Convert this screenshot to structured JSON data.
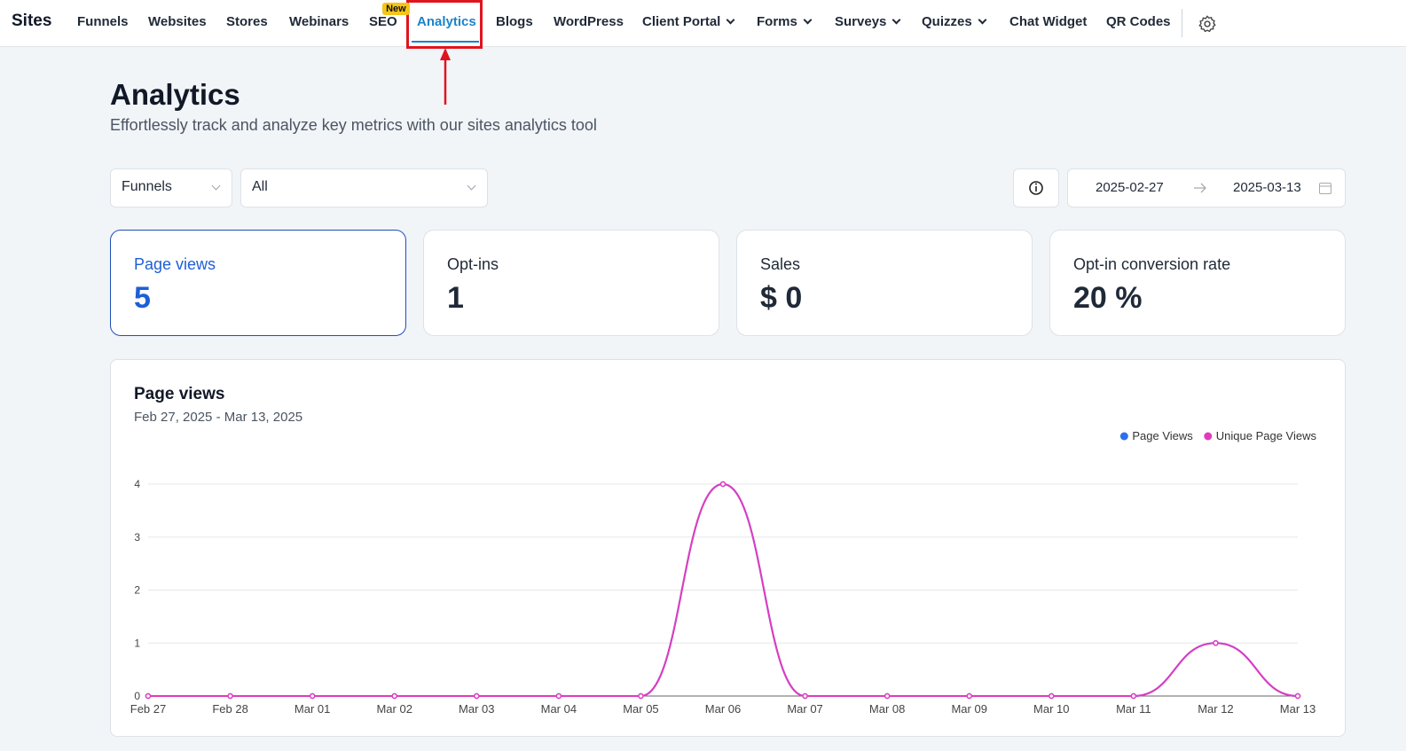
{
  "nav": {
    "brand": "Sites",
    "items": [
      "Funnels",
      "Websites",
      "Stores",
      "Webinars",
      "SEO",
      "Analytics",
      "Blogs",
      "WordPress",
      "Client Portal",
      "Forms",
      "Surveys",
      "Quizzes",
      "Chat Widget",
      "QR Codes"
    ],
    "dropdowns": [
      "Client Portal",
      "Forms",
      "Surveys",
      "Quizzes"
    ],
    "badge": {
      "item": "SEO",
      "text": "New"
    },
    "active": "Analytics"
  },
  "header": {
    "title": "Analytics",
    "subtitle": "Effortlessly track and analyze key metrics with our sites analytics tool"
  },
  "filters": {
    "type": "Funnels",
    "scope": "All",
    "start_date": "2025-02-27",
    "end_date": "2025-03-13"
  },
  "cards": [
    {
      "label": "Page views",
      "value": "5"
    },
    {
      "label": "Opt-ins",
      "value": "1"
    },
    {
      "label": "Sales",
      "value": "$ 0"
    },
    {
      "label": "Opt-in conversion rate",
      "value": "20 %"
    }
  ],
  "chart_data": {
    "type": "line",
    "title": "Page views",
    "subtitle": "Feb 27, 2025 - Mar 13, 2025",
    "categories": [
      "Feb 27",
      "Feb 28",
      "Mar 01",
      "Mar 02",
      "Mar 03",
      "Mar 04",
      "Mar 05",
      "Mar 06",
      "Mar 07",
      "Mar 08",
      "Mar 09",
      "Mar 10",
      "Mar 11",
      "Mar 12",
      "Mar 13"
    ],
    "series": [
      {
        "name": "Page Views",
        "color": "#2f6fed",
        "values": [
          0,
          0,
          0,
          0,
          0,
          0,
          0,
          4,
          0,
          0,
          0,
          0,
          0,
          1,
          0
        ]
      },
      {
        "name": "Unique Page Views",
        "color": "#e03bbf",
        "values": [
          0,
          0,
          0,
          0,
          0,
          0,
          0,
          4,
          0,
          0,
          0,
          0,
          0,
          1,
          0
        ]
      }
    ],
    "ylim": [
      0,
      4
    ],
    "yticks": [
      0,
      1,
      2,
      3,
      4
    ],
    "grid": true,
    "legend": "top-right"
  }
}
